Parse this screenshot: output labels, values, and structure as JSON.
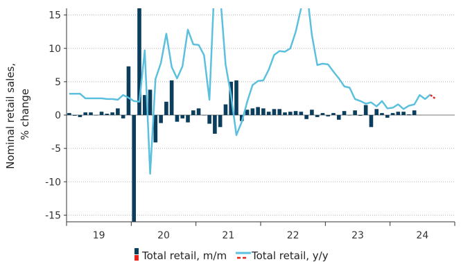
{
  "chart_data": {
    "type": "bar+line",
    "ylabel_lines": [
      "Nominal retail sales,",
      "% change"
    ],
    "ylim": [
      -16,
      16
    ],
    "yticks": [
      -15,
      -10,
      -5,
      0,
      5,
      10,
      15
    ],
    "x_tick_labels": [
      "19",
      "20",
      "21",
      "22",
      "23",
      "24"
    ],
    "x_start": "2019-01",
    "grid": "horizontal-dotted",
    "legend_position": "bottom",
    "colors": {
      "mm": "#0b3d5c",
      "yy": "#5bc0de",
      "forecast": "#e8231c"
    },
    "series": [
      {
        "name": "Total retail, m/m",
        "kind": "bar",
        "values": [
          0.3,
          -0.1,
          -0.3,
          0.4,
          0.4,
          0.0,
          0.5,
          0.2,
          0.4,
          1.0,
          -0.5,
          7.3,
          -16.0,
          16.0,
          3.0,
          3.8,
          -4.1,
          -1.2,
          2.0,
          5.2,
          -1.0,
          -0.5,
          -1.1,
          0.7,
          1.0,
          0.0,
          -1.3,
          -2.8,
          -1.8,
          1.6,
          5.0,
          5.2,
          -0.9,
          0.8,
          1.0,
          1.2,
          1.0,
          0.5,
          0.9,
          0.9,
          0.4,
          0.5,
          0.6,
          0.5,
          -0.6,
          0.8,
          -0.3,
          0.3,
          -0.2,
          0.3,
          -0.7,
          0.6,
          0.0,
          0.7,
          -0.1,
          1.5,
          -1.8,
          0.9,
          0.3,
          -0.4,
          0.3,
          0.5,
          0.5,
          0.1,
          0.7
        ]
      },
      {
        "name": "Total retail, y/y",
        "kind": "line",
        "values": [
          3.2,
          3.2,
          3.2,
          2.5,
          2.5,
          2.5,
          2.5,
          2.4,
          2.4,
          2.3,
          3.0,
          2.6,
          2.1,
          2.0,
          9.7,
          -8.8,
          5.4,
          7.8,
          12.2,
          7.2,
          5.5,
          7.3,
          12.8,
          10.6,
          10.5,
          9.0,
          2.3,
          21.0,
          18.0,
          7.6,
          3.0,
          -3.0,
          -1.0,
          2.0,
          4.5,
          5.1,
          5.2,
          6.8,
          9.0,
          9.6,
          9.5,
          10.0,
          12.5,
          16.0,
          19.0,
          12.0,
          7.5,
          7.7,
          7.6,
          6.5,
          5.5,
          4.3,
          4.1,
          2.4,
          2.1,
          1.7,
          1.9,
          1.3,
          2.1,
          1.0,
          1.1,
          1.6,
          0.9,
          1.4,
          1.6,
          3.0,
          2.4,
          3.1
        ]
      },
      {
        "name": "Total retail, y/y forecast",
        "kind": "line",
        "start_index": 67,
        "values": [
          3.0,
          2.4
        ]
      }
    ],
    "legend": {
      "mm_label": "Total retail, m/m",
      "yy_label": "Total retail, y/y"
    }
  }
}
